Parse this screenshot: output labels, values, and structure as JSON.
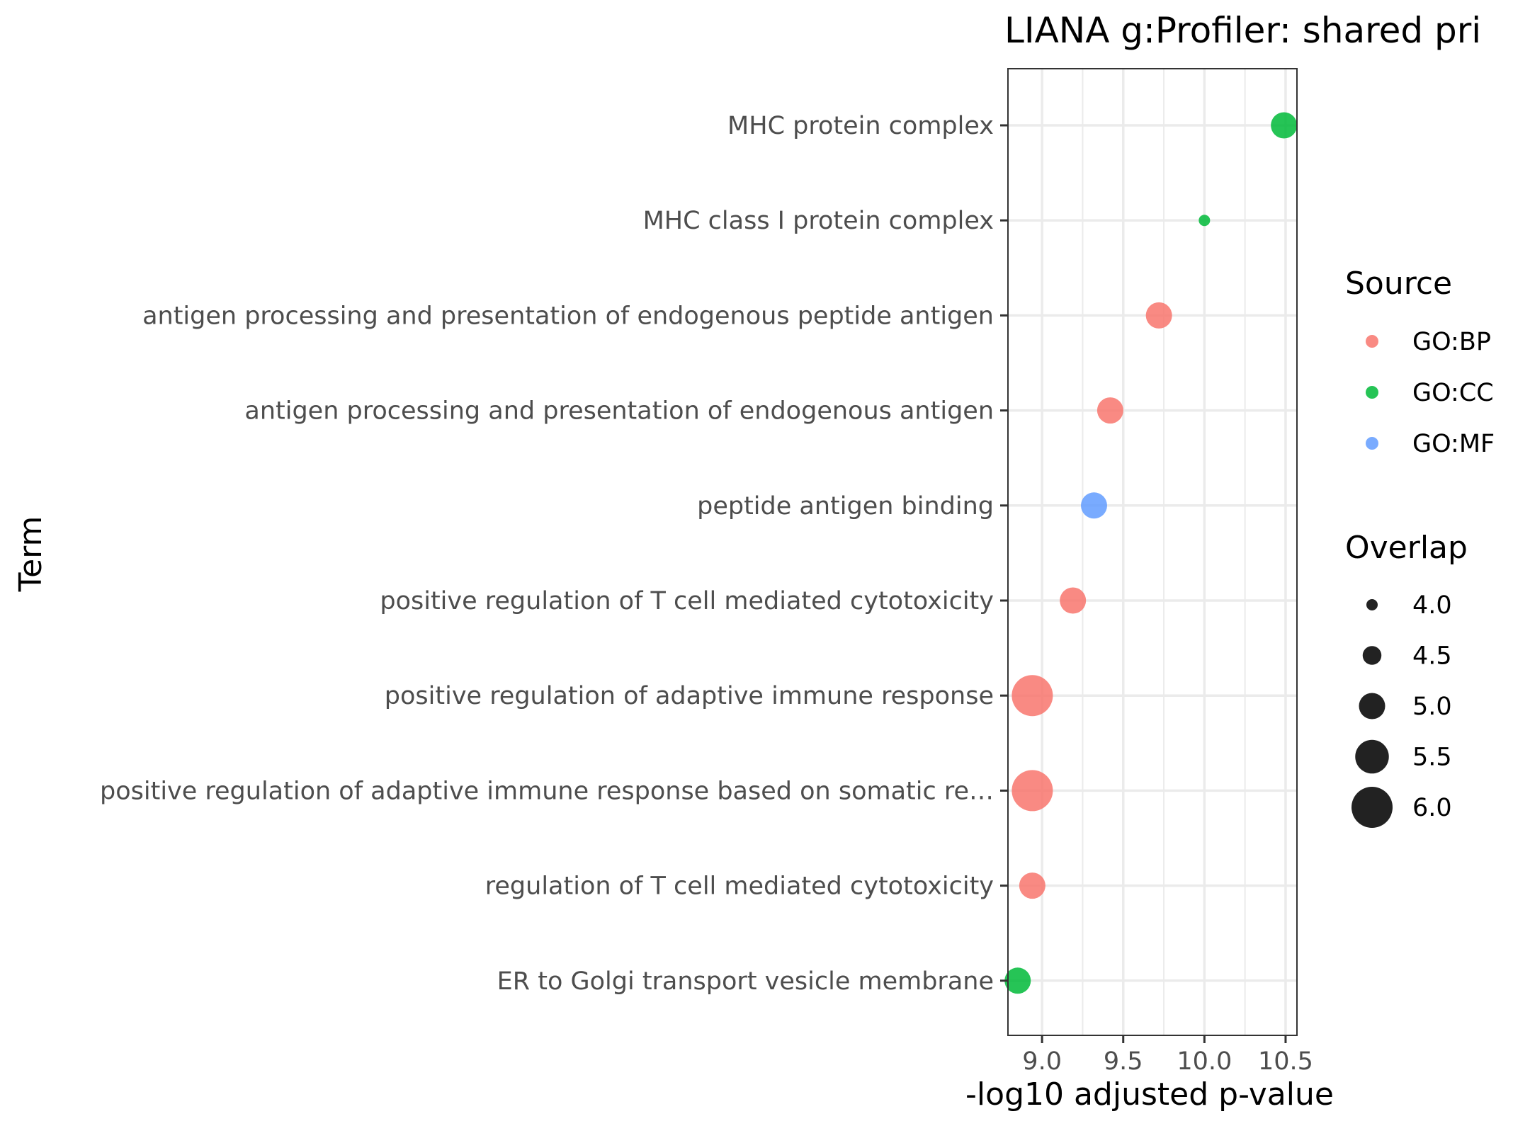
{
  "chart_data": {
    "type": "scatter",
    "title": "LIANA g:Profiler: shared pri",
    "xlabel": "-log10 adjusted p-value",
    "ylabel": "Term",
    "xlim": [
      8.79,
      10.57
    ],
    "x_ticks": [
      9.0,
      9.5,
      10.0,
      10.5
    ],
    "x_tick_labels": [
      "9.0",
      "9.5",
      "10.0",
      "10.5"
    ],
    "grid": true,
    "categories": [
      "MHC protein complex",
      "MHC class I protein complex",
      "antigen processing and presentation of endogenous peptide antigen",
      "antigen processing and presentation of endogenous antigen",
      "peptide antigen binding",
      "positive regulation of T cell mediated cytotoxicity",
      "positive regulation of adaptive immune response",
      "positive regulation of adaptive immune response based on somatic re…",
      "regulation of T cell mediated cytotoxicity",
      "ER to Golgi transport vesicle membrane"
    ],
    "points": [
      {
        "term": "MHC protein complex",
        "x": 10.49,
        "source": "GO:CC",
        "overlap": 5
      },
      {
        "term": "MHC class I protein complex",
        "x": 10.0,
        "source": "GO:CC",
        "overlap": 4
      },
      {
        "term": "antigen processing and presentation of endogenous peptide antigen",
        "x": 9.72,
        "source": "GO:BP",
        "overlap": 5
      },
      {
        "term": "antigen processing and presentation of endogenous antigen",
        "x": 9.42,
        "source": "GO:BP",
        "overlap": 5
      },
      {
        "term": "peptide antigen binding",
        "x": 9.32,
        "source": "GO:MF",
        "overlap": 5
      },
      {
        "term": "positive regulation of T cell mediated cytotoxicity",
        "x": 9.19,
        "source": "GO:BP",
        "overlap": 5
      },
      {
        "term": "positive regulation of adaptive immune response",
        "x": 8.94,
        "source": "GO:BP",
        "overlap": 6
      },
      {
        "term": "positive regulation of adaptive immune response based on somatic re…",
        "x": 8.94,
        "source": "GO:BP",
        "overlap": 6
      },
      {
        "term": "regulation of T cell mediated cytotoxicity",
        "x": 8.94,
        "source": "GO:BP",
        "overlap": 5
      },
      {
        "term": "ER to Golgi transport vesicle membrane",
        "x": 8.85,
        "source": "GO:CC",
        "overlap": 5
      }
    ],
    "legend_position": "right",
    "color_legend": {
      "title": "Source",
      "entries": [
        {
          "label": "GO:BP",
          "color": "#F8766D"
        },
        {
          "label": "GO:CC",
          "color": "#00BA38"
        },
        {
          "label": "GO:MF",
          "color": "#619CFF"
        }
      ]
    },
    "size_legend": {
      "title": "Overlap",
      "entries": [
        {
          "label": "4.0",
          "value": 4.0
        },
        {
          "label": "4.5",
          "value": 4.5
        },
        {
          "label": "5.0",
          "value": 5.0
        },
        {
          "label": "5.5",
          "value": 5.5
        },
        {
          "label": "6.0",
          "value": 6.0
        }
      ],
      "color": "#222222"
    }
  }
}
